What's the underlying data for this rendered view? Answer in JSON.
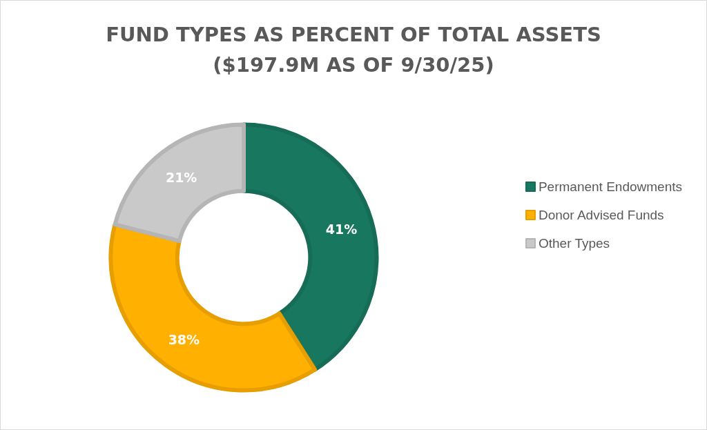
{
  "chart_data": {
    "type": "donut",
    "title": "FUND TYPES AS PERCENT OF TOTAL ASSETS\n($197.9M AS OF 9/30/25)",
    "categories": [
      "Permanent Endowments",
      "Donor Advised Funds",
      "Other Types"
    ],
    "values": [
      41,
      38,
      21
    ],
    "colors": [
      "#18785f",
      "#ffb000",
      "#c9c9c9"
    ],
    "value_labels": [
      "41%",
      "38%",
      "21%"
    ],
    "legend": "right"
  }
}
